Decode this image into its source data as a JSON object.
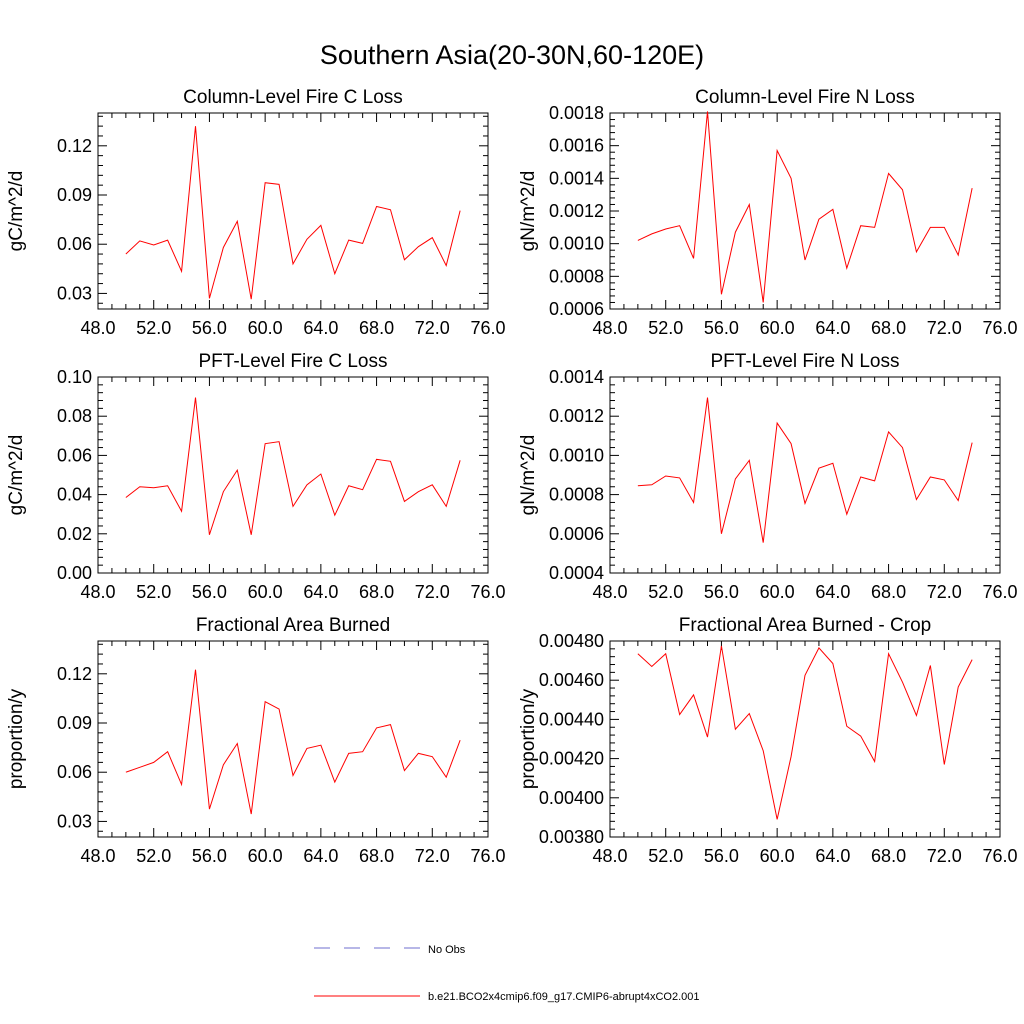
{
  "figure": {
    "title": "Southern Asia(20-30N,60-120E)"
  },
  "legend": {
    "entries": [
      {
        "label": "No Obs",
        "color": "#6f6fcf",
        "style": "dashed"
      },
      {
        "label": "b.e21.BCO2x4cmip6.f09_g17.CMIP6-abrupt4xCO2.001",
        "color": "#ff0000",
        "style": "solid"
      }
    ]
  },
  "chart_data": [
    {
      "type": "line",
      "title": "Column-Level Fire C Loss",
      "ylabel": "gC/m^2/d",
      "xlim": [
        48,
        76
      ],
      "ylim": [
        0.0205,
        0.14
      ],
      "xticks": [
        "48.0",
        "52.0",
        "56.0",
        "60.0",
        "64.0",
        "68.0",
        "72.0",
        "76.0"
      ],
      "yticks": [
        "0.03",
        "0.06",
        "0.09",
        "0.12"
      ],
      "ytick_values": [
        0.03,
        0.06,
        0.09,
        0.12
      ],
      "series": [
        {
          "color": "#ff0000",
          "x": [
            50,
            51,
            52,
            53,
            54,
            55,
            56,
            57,
            58,
            59,
            60,
            61,
            62,
            63,
            64,
            65,
            66,
            67,
            68,
            69,
            70,
            71,
            72,
            73,
            74
          ],
          "values": [
            0.054,
            0.062,
            0.0595,
            0.0625,
            0.0435,
            0.132,
            0.027,
            0.058,
            0.074,
            0.0265,
            0.0975,
            0.0965,
            0.048,
            0.063,
            0.0715,
            0.042,
            0.0625,
            0.0605,
            0.083,
            0.081,
            0.0505,
            0.0585,
            0.064,
            0.047,
            0.0805
          ]
        }
      ]
    },
    {
      "type": "line",
      "title": "Column-Level Fire N Loss",
      "ylabel": "gN/m^2/d",
      "xlim": [
        48,
        76
      ],
      "ylim": [
        0.0006,
        0.0018
      ],
      "xticks": [
        "48.0",
        "52.0",
        "56.0",
        "60.0",
        "64.0",
        "68.0",
        "72.0",
        "76.0"
      ],
      "yticks": [
        "0.0006",
        "0.0008",
        "0.0010",
        "0.0012",
        "0.0014",
        "0.0016",
        "0.0018"
      ],
      "ytick_values": [
        0.0006,
        0.0008,
        0.001,
        0.0012,
        0.0014,
        0.0016,
        0.0018
      ],
      "series": [
        {
          "color": "#ff0000",
          "x": [
            50,
            51,
            52,
            53,
            54,
            55,
            56,
            57,
            58,
            59,
            60,
            61,
            62,
            63,
            64,
            65,
            66,
            67,
            68,
            69,
            70,
            71,
            72,
            73,
            74
          ],
          "values": [
            0.00102,
            0.00106,
            0.00109,
            0.00111,
            0.00091,
            0.00181,
            0.00069,
            0.00107,
            0.00124,
            0.00064,
            0.00157,
            0.0014,
            0.0009,
            0.00115,
            0.00121,
            0.00085,
            0.00111,
            0.0011,
            0.00143,
            0.00133,
            0.00095,
            0.0011,
            0.0011,
            0.00093,
            0.00134
          ]
        }
      ]
    },
    {
      "type": "line",
      "title": "PFT-Level Fire C Loss",
      "ylabel": "gC/m^2/d",
      "xlim": [
        48,
        76
      ],
      "ylim": [
        0,
        0.1
      ],
      "xticks": [
        "48.0",
        "52.0",
        "56.0",
        "60.0",
        "64.0",
        "68.0",
        "72.0",
        "76.0"
      ],
      "yticks": [
        "0.00",
        "0.02",
        "0.04",
        "0.06",
        "0.08",
        "0.10"
      ],
      "ytick_values": [
        0,
        0.02,
        0.04,
        0.06,
        0.08,
        0.1
      ],
      "series": [
        {
          "color": "#ff0000",
          "x": [
            50,
            51,
            52,
            53,
            54,
            55,
            56,
            57,
            58,
            59,
            60,
            61,
            62,
            63,
            64,
            65,
            66,
            67,
            68,
            69,
            70,
            71,
            72,
            73,
            74
          ],
          "values": [
            0.0385,
            0.044,
            0.0435,
            0.0445,
            0.0315,
            0.0895,
            0.0195,
            0.0415,
            0.0525,
            0.0195,
            0.066,
            0.067,
            0.034,
            0.045,
            0.0505,
            0.0295,
            0.0445,
            0.0425,
            0.058,
            0.057,
            0.0365,
            0.0415,
            0.045,
            0.034,
            0.0575
          ]
        }
      ]
    },
    {
      "type": "line",
      "title": "PFT-Level Fire N Loss",
      "ylabel": "gN/m^2/d",
      "xlim": [
        48,
        76
      ],
      "ylim": [
        0.0004,
        0.0014
      ],
      "xticks": [
        "48.0",
        "52.0",
        "56.0",
        "60.0",
        "64.0",
        "68.0",
        "72.0",
        "76.0"
      ],
      "yticks": [
        "0.0004",
        "0.0006",
        "0.0008",
        "0.0010",
        "0.0012",
        "0.0014"
      ],
      "ytick_values": [
        0.0004,
        0.0006,
        0.0008,
        0.001,
        0.0012,
        0.0014
      ],
      "series": [
        {
          "color": "#ff0000",
          "x": [
            50,
            51,
            52,
            53,
            54,
            55,
            56,
            57,
            58,
            59,
            60,
            61,
            62,
            63,
            64,
            65,
            66,
            67,
            68,
            69,
            70,
            71,
            72,
            73,
            74
          ],
          "values": [
            0.000845,
            0.00085,
            0.000895,
            0.000885,
            0.00076,
            0.001295,
            0.0006,
            0.00088,
            0.000975,
            0.000555,
            0.001165,
            0.00106,
            0.000755,
            0.000935,
            0.00096,
            0.0007,
            0.00089,
            0.00087,
            0.00112,
            0.00104,
            0.000775,
            0.00089,
            0.000875,
            0.00077,
            0.001065
          ]
        }
      ]
    },
    {
      "type": "line",
      "title": "Fractional Area Burned",
      "ylabel": "proportion/y",
      "xlim": [
        48,
        76
      ],
      "ylim": [
        0.0205,
        0.14
      ],
      "xticks": [
        "48.0",
        "52.0",
        "56.0",
        "60.0",
        "64.0",
        "68.0",
        "72.0",
        "76.0"
      ],
      "yticks": [
        "0.03",
        "0.06",
        "0.09",
        "0.12"
      ],
      "ytick_values": [
        0.03,
        0.06,
        0.09,
        0.12
      ],
      "series": [
        {
          "color": "#ff0000",
          "x": [
            50,
            51,
            52,
            53,
            54,
            55,
            56,
            57,
            58,
            59,
            60,
            61,
            62,
            63,
            64,
            65,
            66,
            67,
            68,
            69,
            70,
            71,
            72,
            73,
            74
          ],
          "values": [
            0.06,
            0.063,
            0.066,
            0.0725,
            0.0525,
            0.1225,
            0.0375,
            0.0645,
            0.0775,
            0.0345,
            0.103,
            0.0985,
            0.058,
            0.0745,
            0.0765,
            0.054,
            0.0715,
            0.0725,
            0.087,
            0.089,
            0.061,
            0.0715,
            0.0695,
            0.057,
            0.0795
          ]
        }
      ]
    },
    {
      "type": "line",
      "title": "Fractional Area Burned - Crop",
      "ylabel": "proportion/y",
      "xlim": [
        48,
        76
      ],
      "ylim": [
        0.0038,
        0.0048
      ],
      "xticks": [
        "48.0",
        "52.0",
        "56.0",
        "60.0",
        "64.0",
        "68.0",
        "72.0",
        "76.0"
      ],
      "yticks": [
        "0.00380",
        "0.00400",
        "0.00420",
        "0.00440",
        "0.00460",
        "0.00480"
      ],
      "ytick_values": [
        0.0038,
        0.004,
        0.0042,
        0.0044,
        0.0046,
        0.0048
      ],
      "series": [
        {
          "color": "#ff0000",
          "x": [
            50,
            51,
            52,
            53,
            54,
            55,
            56,
            57,
            58,
            59,
            60,
            61,
            62,
            63,
            64,
            65,
            66,
            67,
            68,
            69,
            70,
            71,
            72,
            73,
            74
          ],
          "values": [
            0.004735,
            0.00467,
            0.004735,
            0.004425,
            0.004525,
            0.00431,
            0.004775,
            0.00435,
            0.00443,
            0.00424,
            0.00389,
            0.00421,
            0.004625,
            0.004765,
            0.004685,
            0.004365,
            0.004315,
            0.004185,
            0.004735,
            0.00459,
            0.00442,
            0.004675,
            0.00417,
            0.004565,
            0.004705
          ]
        }
      ]
    }
  ]
}
